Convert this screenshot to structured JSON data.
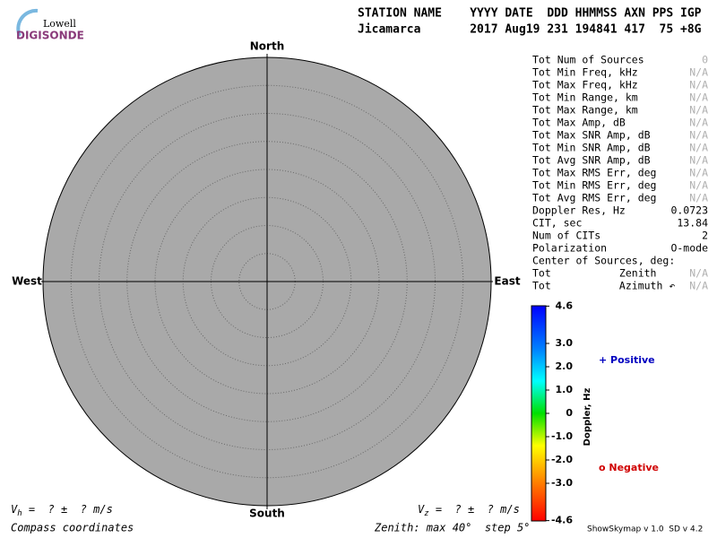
{
  "logo": {
    "top": "Lowell",
    "bottom": "DIGISONDE"
  },
  "header": {
    "line1": "STATION NAME    YYYY DATE  DDD HHMMSS AXN PPS IGP",
    "line2": "Jicamarca       2017 Aug19 231 194841 417  75 +8G"
  },
  "plot": {
    "north": "North",
    "south": "South",
    "west": "West",
    "east": "East",
    "zenith_max": 40,
    "zenith_step": 5
  },
  "table": {
    "rows": [
      {
        "label": "Tot Num of Sources",
        "value": "0",
        "muted": true
      },
      {
        "label": "Tot Min Freq, kHz",
        "value": "N/A",
        "muted": true
      },
      {
        "label": "Tot Max Freq, kHz",
        "value": "N/A",
        "muted": true
      },
      {
        "label": "Tot Min Range, km",
        "value": "N/A",
        "muted": true
      },
      {
        "label": "Tot Max Range, km",
        "value": "N/A",
        "muted": true
      },
      {
        "label": "Tot Max Amp, dB",
        "value": "N/A",
        "muted": true
      },
      {
        "label": "Tot Max SNR Amp, dB",
        "value": "N/A",
        "muted": true
      },
      {
        "label": "Tot Min SNR Amp, dB",
        "value": "N/A",
        "muted": true
      },
      {
        "label": "Tot Avg SNR Amp, dB",
        "value": "N/A",
        "muted": true
      },
      {
        "label": "Tot Max RMS Err, deg",
        "value": "N/A",
        "muted": true
      },
      {
        "label": "Tot Min RMS Err, deg",
        "value": "N/A",
        "muted": true
      },
      {
        "label": "Tot Avg RMS Err, deg",
        "value": "N/A",
        "muted": true
      },
      {
        "label": "Doppler Res, Hz",
        "value": "0.0723",
        "muted": false
      },
      {
        "label": "CIT, sec",
        "value": "13.84",
        "muted": false
      },
      {
        "label": "Num of CITs",
        "value": "2",
        "muted": false
      },
      {
        "label": "Polarization",
        "value": "O-mode",
        "muted": false
      },
      {
        "label": "Center of Sources, deg:"
      },
      {
        "label": "Tot           Zenith",
        "value": "N/A",
        "muted": true
      },
      {
        "label": "Tot           Azimuth ↶",
        "value": "N/A",
        "muted": true
      }
    ]
  },
  "colorbar": {
    "title": "Doppler, Hz",
    "ticks": [
      4.6,
      {
        "value": 3,
        "label": "3.0"
      },
      {
        "value": 2,
        "label": "2.0"
      },
      {
        "value": 1,
        "label": "1.0"
      },
      0,
      {
        "value": -1,
        "label": "-1.0"
      },
      {
        "value": -2,
        "label": "-2.0"
      },
      {
        "value": -3,
        "label": "-3.0"
      },
      -4.6
    ],
    "positive": "+ Positive",
    "negative": "o Negative"
  },
  "footer": {
    "vh": {
      "symbol": "V",
      "subscript": "h",
      "text": " =  ? ±  ? m/s"
    },
    "vz": {
      "symbol": "V",
      "subscript": "z",
      "text": " =  ? ±  ? m/s"
    },
    "coords": "Compass coordinates",
    "zenith": "Zenith: max 40°  step 5°",
    "version": "ShowSkymap v 1.0  SD v 4.2"
  }
}
